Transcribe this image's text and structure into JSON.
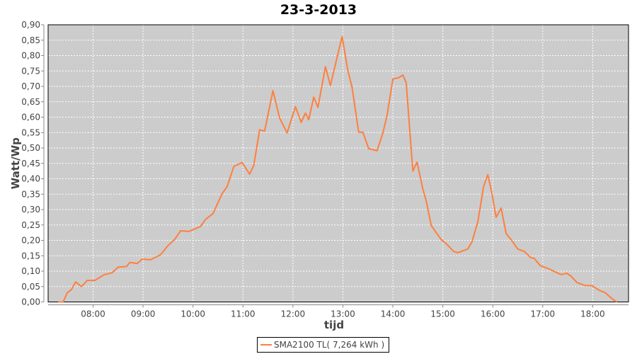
{
  "chart_data": {
    "type": "line",
    "title": "23-3-2013",
    "xlabel": "tijd",
    "ylabel": "Watt/Wp",
    "xlim": [
      "07:06",
      "18:43"
    ],
    "ylim": [
      0,
      0.9
    ],
    "x_ticks": [
      "08:00",
      "09:00",
      "10:00",
      "11:00",
      "12:00",
      "13:00",
      "14:00",
      "15:00",
      "16:00",
      "17:00",
      "18:00"
    ],
    "y_ticks": [
      "0,00",
      "0,05",
      "0,10",
      "0,15",
      "0,20",
      "0,25",
      "0,30",
      "0,35",
      "0,40",
      "0,45",
      "0,50",
      "0,55",
      "0,60",
      "0,65",
      "0,70",
      "0,75",
      "0,80",
      "0,85",
      "0,90"
    ],
    "grid": true,
    "plot_background": "#cccccc",
    "legend_position": "bottom",
    "series": [
      {
        "name": "SMA2100 TL( 7,264 kWh )",
        "color": "#ff7f3f",
        "x": [
          "07:18",
          "07:24",
          "07:29",
          "07:34",
          "07:39",
          "07:46",
          "07:53",
          "08:02",
          "08:13",
          "08:23",
          "08:30",
          "08:40",
          "08:44",
          "08:53",
          "08:59",
          "09:09",
          "09:21",
          "09:30",
          "09:38",
          "09:45",
          "09:55",
          "10:09",
          "10:15",
          "10:24",
          "10:35",
          "10:41",
          "10:49",
          "10:59",
          "11:08",
          "11:13",
          "11:20",
          "11:26",
          "11:36",
          "11:44",
          "11:53",
          "12:03",
          "12:10",
          "12:15",
          "12:19",
          "12:25",
          "12:30",
          "12:39",
          "12:45",
          "12:59",
          "13:06",
          "13:11",
          "13:19",
          "13:24",
          "13:31",
          "13:41",
          "13:48",
          "13:53",
          "14:00",
          "14:07",
          "14:12",
          "14:16",
          "14:24",
          "14:29",
          "14:36",
          "14:40",
          "14:46",
          "14:51",
          "14:58",
          "15:05",
          "15:13",
          "15:18",
          "15:30",
          "15:35",
          "15:42",
          "15:49",
          "15:54",
          "15:59",
          "16:04",
          "16:10",
          "16:16",
          "16:23",
          "16:30",
          "16:38",
          "16:45",
          "16:50",
          "16:57",
          "17:08",
          "17:17",
          "17:22",
          "17:29",
          "17:34",
          "17:41",
          "17:51",
          "17:59",
          "18:08",
          "18:15",
          "18:24",
          "18:29"
        ],
        "y": [
          0,
          0,
          0.03,
          0.04,
          0.065,
          0.05,
          0.07,
          0.07,
          0.088,
          0.095,
          0.113,
          0.115,
          0.128,
          0.125,
          0.139,
          0.137,
          0.153,
          0.183,
          0.203,
          0.231,
          0.229,
          0.245,
          0.268,
          0.287,
          0.352,
          0.375,
          0.44,
          0.453,
          0.415,
          0.444,
          0.559,
          0.555,
          0.686,
          0.597,
          0.549,
          0.634,
          0.583,
          0.613,
          0.592,
          0.665,
          0.632,
          0.764,
          0.703,
          0.862,
          0.751,
          0.697,
          0.551,
          0.551,
          0.498,
          0.491,
          0.548,
          0.605,
          0.724,
          0.728,
          0.737,
          0.712,
          0.425,
          0.454,
          0.367,
          0.329,
          0.249,
          0.229,
          0.203,
          0.187,
          0.164,
          0.16,
          0.172,
          0.195,
          0.26,
          0.375,
          0.413,
          0.352,
          0.275,
          0.305,
          0.222,
          0.199,
          0.172,
          0.164,
          0.145,
          0.141,
          0.118,
          0.107,
          0.095,
          0.089,
          0.093,
          0.084,
          0.063,
          0.053,
          0.053,
          0.038,
          0.03,
          0.009,
          0
        ]
      }
    ]
  }
}
